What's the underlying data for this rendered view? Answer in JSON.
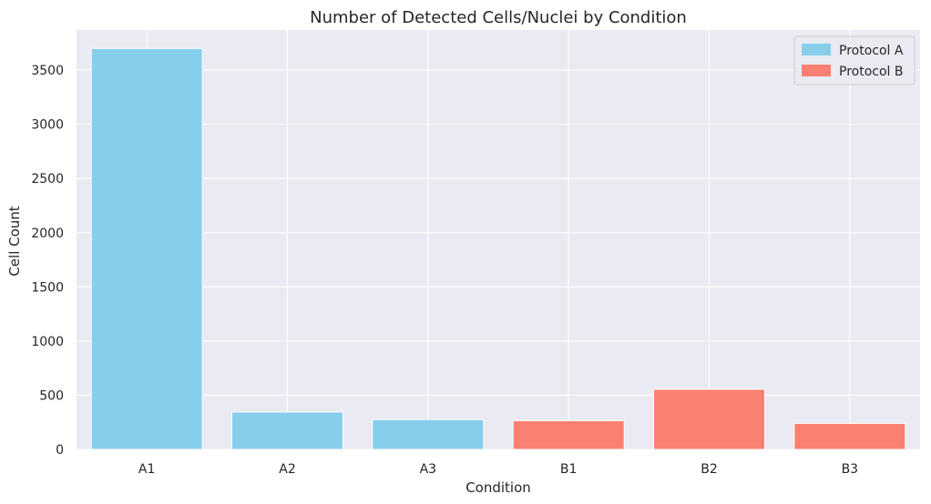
{
  "chart_data": {
    "type": "bar",
    "title": "Number of Detected Cells/Nuclei by Condition",
    "xlabel": "Condition",
    "ylabel": "Cell Count",
    "categories": [
      "A1",
      "A2",
      "A3",
      "B1",
      "B2",
      "B3"
    ],
    "values": [
      3700,
      345,
      275,
      265,
      555,
      240
    ],
    "bar_groups": [
      "Protocol A",
      "Protocol A",
      "Protocol A",
      "Protocol B",
      "Protocol B",
      "Protocol B"
    ],
    "ylim": [
      0,
      3870
    ],
    "yticks": [
      0,
      500,
      1000,
      1500,
      2000,
      2500,
      3000,
      3500
    ],
    "grid": true,
    "legend": {
      "placement": "top-right",
      "entries": [
        {
          "label": "Protocol A",
          "color": "#87ceeb"
        },
        {
          "label": "Protocol B",
          "color": "#fa8072"
        }
      ]
    }
  }
}
